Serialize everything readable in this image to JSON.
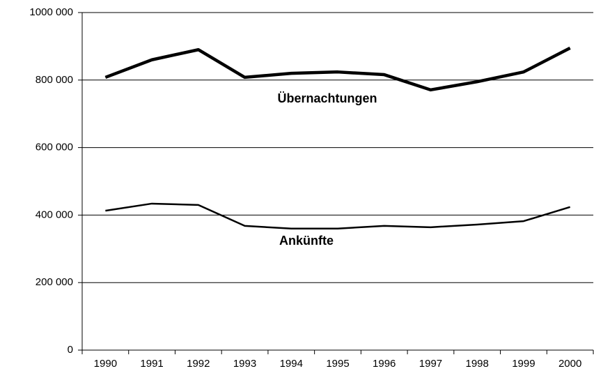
{
  "chart_data": {
    "type": "line",
    "categories": [
      "1990",
      "1991",
      "1992",
      "1993",
      "1994",
      "1995",
      "1996",
      "1997",
      "1998",
      "1999",
      "2000"
    ],
    "series": [
      {
        "name": "Übernachtungen",
        "color": "#000000",
        "values": [
          808000,
          860000,
          890000,
          808000,
          820000,
          824000,
          816000,
          771000,
          795000,
          824000,
          895000
        ]
      },
      {
        "name": "Ankünfte",
        "color": "#000000",
        "values": [
          413000,
          434000,
          430000,
          368000,
          360000,
          360000,
          368000,
          364000,
          372000,
          382000,
          424000
        ]
      }
    ],
    "ylim": [
      0,
      1000000
    ],
    "yticks": [
      0,
      {
        "value": 200000,
        "label": "200 000"
      },
      {
        "value": 400000,
        "label": "400 000"
      },
      {
        "value": 600000,
        "label": "600 000"
      },
      {
        "value": 800000,
        "label": "800 000"
      },
      {
        "value": 1000000,
        "label": "1000 000"
      }
    ],
    "grid": true
  }
}
